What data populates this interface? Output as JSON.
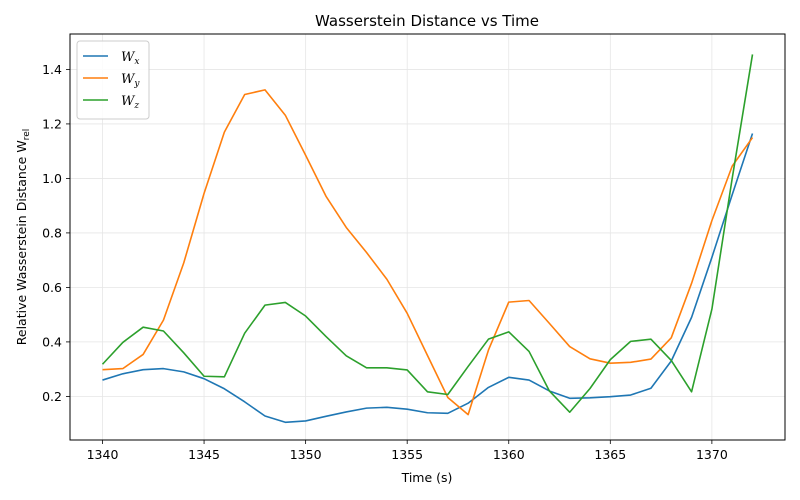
{
  "chart_data": {
    "type": "line",
    "title": "Wasserstein Distance vs Time",
    "xlabel": "Time (s)",
    "ylabel": "Relative Wasserstein Distance W",
    "ylabel_subscript": "rel",
    "xlim": [
      1338.4,
      1373.6
    ],
    "ylim": [
      0.04,
      1.53
    ],
    "xticks": [
      1340,
      1345,
      1350,
      1355,
      1360,
      1365,
      1370
    ],
    "yticks": [
      0.2,
      0.4,
      0.6,
      0.8,
      1.0,
      1.2,
      1.4
    ],
    "ytick_labels": [
      "0.2",
      "0.4",
      "0.6",
      "0.8",
      "1.0",
      "1.2",
      "1.4"
    ],
    "grid": true,
    "legend_position": "top-left",
    "x": [
      1340,
      1341,
      1342,
      1343,
      1344,
      1345,
      1346,
      1347,
      1348,
      1349,
      1350,
      1351,
      1352,
      1353,
      1354,
      1355,
      1356,
      1357,
      1358,
      1359,
      1360,
      1361,
      1362,
      1363,
      1364,
      1365,
      1366,
      1367,
      1368,
      1369,
      1370,
      1371,
      1372
    ],
    "series": [
      {
        "name": "W",
        "subscript": "x",
        "color": "#1f77b4",
        "values": [
          0.26,
          0.283,
          0.298,
          0.302,
          0.29,
          0.265,
          0.228,
          0.18,
          0.128,
          0.105,
          0.11,
          0.127,
          0.143,
          0.157,
          0.16,
          0.153,
          0.14,
          0.138,
          0.175,
          0.233,
          0.27,
          0.26,
          0.22,
          0.193,
          0.195,
          0.199,
          0.205,
          0.23,
          0.33,
          0.49,
          0.71,
          0.94,
          1.165
        ]
      },
      {
        "name": "W",
        "subscript": "y",
        "color": "#ff7f0e",
        "values": [
          0.298,
          0.302,
          0.354,
          0.48,
          0.69,
          0.945,
          1.17,
          1.308,
          1.325,
          1.232,
          1.085,
          0.935,
          0.82,
          0.728,
          0.63,
          0.505,
          0.35,
          0.196,
          0.133,
          0.37,
          0.546,
          0.552,
          0.468,
          0.383,
          0.338,
          0.322,
          0.325,
          0.337,
          0.415,
          0.615,
          0.845,
          1.045,
          1.15
        ]
      },
      {
        "name": "W",
        "subscript": "z",
        "color": "#2ca02c",
        "values": [
          0.318,
          0.398,
          0.454,
          0.44,
          0.36,
          0.274,
          0.272,
          0.432,
          0.535,
          0.545,
          0.495,
          0.42,
          0.349,
          0.305,
          0.305,
          0.297,
          0.217,
          0.207,
          0.31,
          0.41,
          0.437,
          0.365,
          0.22,
          0.142,
          0.229,
          0.335,
          0.402,
          0.41,
          0.332,
          0.217,
          0.52,
          1.0,
          1.455
        ]
      }
    ]
  }
}
